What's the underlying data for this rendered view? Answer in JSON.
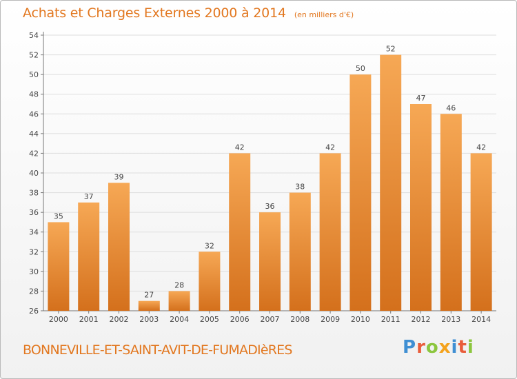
{
  "title": "Achats et Charges Externes 2000 à 2014",
  "unit": "(en milliers d'€)",
  "commune": "BONNEVILLE-ET-SAINT-AVIT-DE-FUMADIèRES",
  "logo": {
    "letters": [
      "P",
      "r",
      "o",
      "x",
      "i",
      "t",
      "i"
    ],
    "colors": [
      "#3f8fd3",
      "#e95d3b",
      "#8cc63e",
      "#f4a21c",
      "#3f8fd3",
      "#e95d3b",
      "#8cc63e"
    ]
  },
  "colors": {
    "accent": "#e2771f",
    "bar_light": "#f6a855",
    "bar_dark": "#d4701c"
  },
  "chart_data": {
    "type": "bar",
    "title": "Achats et Charges Externes 2000 à 2014",
    "subtitle": "(en milliers d'€)",
    "categories": [
      "2000",
      "2001",
      "2002",
      "2003",
      "2004",
      "2005",
      "2006",
      "2007",
      "2008",
      "2009",
      "2010",
      "2011",
      "2012",
      "2013",
      "2014"
    ],
    "values": [
      35,
      37,
      39,
      27,
      28,
      32,
      42,
      36,
      38,
      42,
      50,
      52,
      47,
      46,
      42
    ],
    "ylim": [
      26,
      54
    ],
    "yticks": [
      26,
      28,
      30,
      32,
      34,
      36,
      38,
      40,
      42,
      44,
      46,
      48,
      50,
      52,
      54
    ],
    "grid": true,
    "xlabel": "",
    "ylabel": ""
  }
}
